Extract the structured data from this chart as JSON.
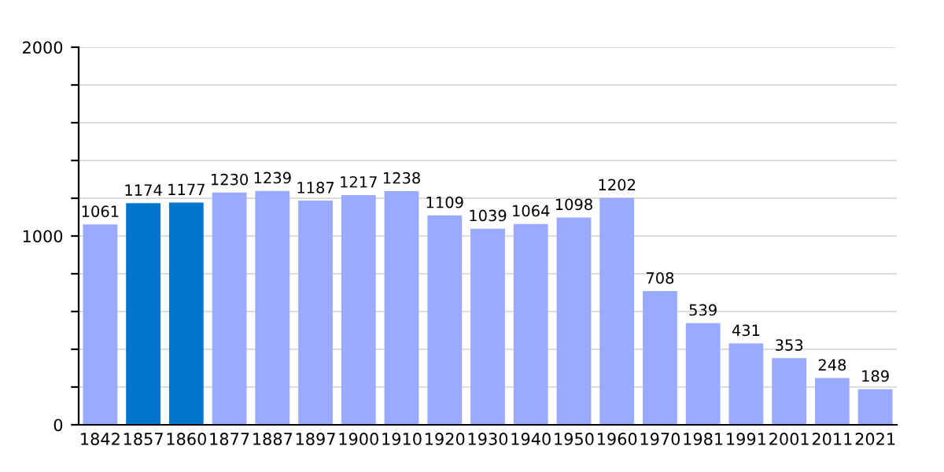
{
  "chart_data": {
    "type": "bar",
    "categories": [
      "1842",
      "1857",
      "1860",
      "1877",
      "1887",
      "1897",
      "1900",
      "1910",
      "1920",
      "1930",
      "1940",
      "1950",
      "1960",
      "1970",
      "1981",
      "1991",
      "2001",
      "2011",
      "2021"
    ],
    "values": [
      1061,
      1174,
      1177,
      1230,
      1239,
      1187,
      1217,
      1238,
      1109,
      1039,
      1064,
      1098,
      1202,
      708,
      539,
      431,
      353,
      248,
      189
    ],
    "colors": [
      "#99aaff",
      "#0077cc",
      "#0077cc",
      "#99aaff",
      "#99aaff",
      "#99aaff",
      "#99aaff",
      "#99aaff",
      "#99aaff",
      "#99aaff",
      "#99aaff",
      "#99aaff",
      "#99aaff",
      "#99aaff",
      "#99aaff",
      "#99aaff",
      "#99aaff",
      "#99aaff",
      "#99aaff"
    ],
    "ylim": [
      0,
      2000
    ],
    "yticks": [
      0,
      {
        "value": 200,
        "label": null
      },
      {
        "value": 400,
        "label": null
      },
      {
        "value": 600,
        "label": null
      },
      {
        "value": 800,
        "label": null
      },
      1000,
      {
        "value": 1200,
        "label": null
      },
      {
        "value": 1400,
        "label": null
      },
      {
        "value": 1600,
        "label": null
      },
      {
        "value": 1800,
        "label": null
      },
      2000
    ],
    "grid": "y",
    "data_labels": true
  }
}
